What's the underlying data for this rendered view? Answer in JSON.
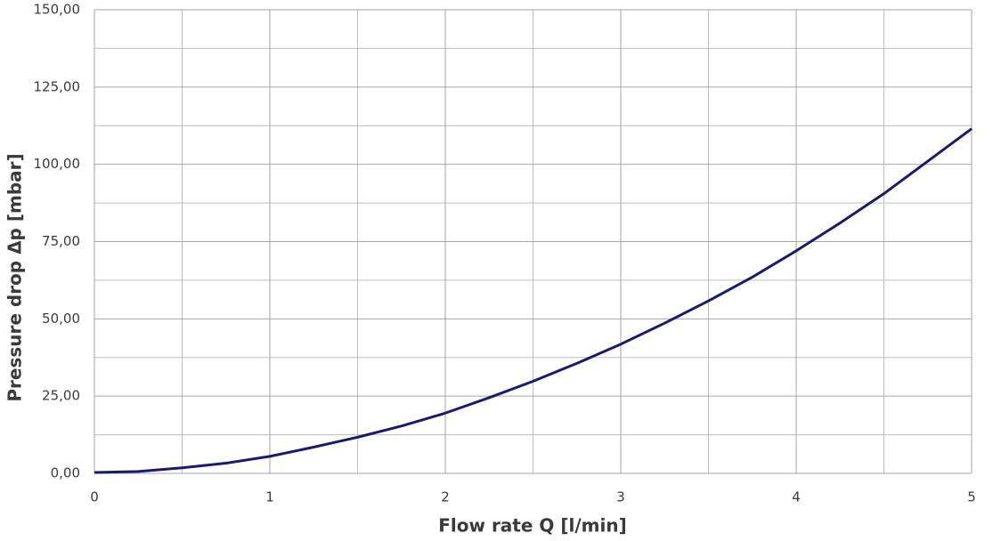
{
  "chart_data": {
    "type": "line",
    "x_label": "Flow rate Q [l/min]",
    "y_label": "Pressure drop Δp [mbar]",
    "x": [
      0,
      0.25,
      0.5,
      0.75,
      1,
      1.25,
      1.5,
      1.75,
      2,
      2.25,
      2.5,
      2.75,
      3,
      3.25,
      3.5,
      3.75,
      4,
      4.25,
      4.5,
      4.75,
      5
    ],
    "series": [
      {
        "color": "#1b1a6b",
        "values": [
          0.3,
          0.6,
          1.8,
          3.3,
          5.5,
          8.5,
          11.7,
          15.3,
          19.5,
          24.5,
          29.8,
          35.6,
          41.8,
          48.6,
          55.8,
          63.5,
          72,
          81,
          90.5,
          101,
          111.5
        ]
      }
    ],
    "xlim": [
      0,
      5
    ],
    "ylim": [
      0,
      150
    ],
    "xticks": [
      0,
      1,
      2,
      3,
      4,
      5
    ],
    "yticks": [
      {
        "value": 0,
        "label": "0,00"
      },
      {
        "value": 25,
        "label": "25,00"
      },
      {
        "value": 50,
        "label": "50,00"
      },
      {
        "value": 75,
        "label": "75,00"
      },
      {
        "value": 100,
        "label": "100,00"
      },
      {
        "value": 125,
        "label": "125,00"
      },
      {
        "value": 150,
        "label": "150,00"
      }
    ],
    "x_minor_grid": [
      0.5,
      1.5,
      2.5,
      3.5,
      4.5
    ],
    "y_minor_grid": [
      12.5,
      37.5,
      62.5,
      87.5,
      112.5,
      137.5
    ],
    "grid": true
  }
}
